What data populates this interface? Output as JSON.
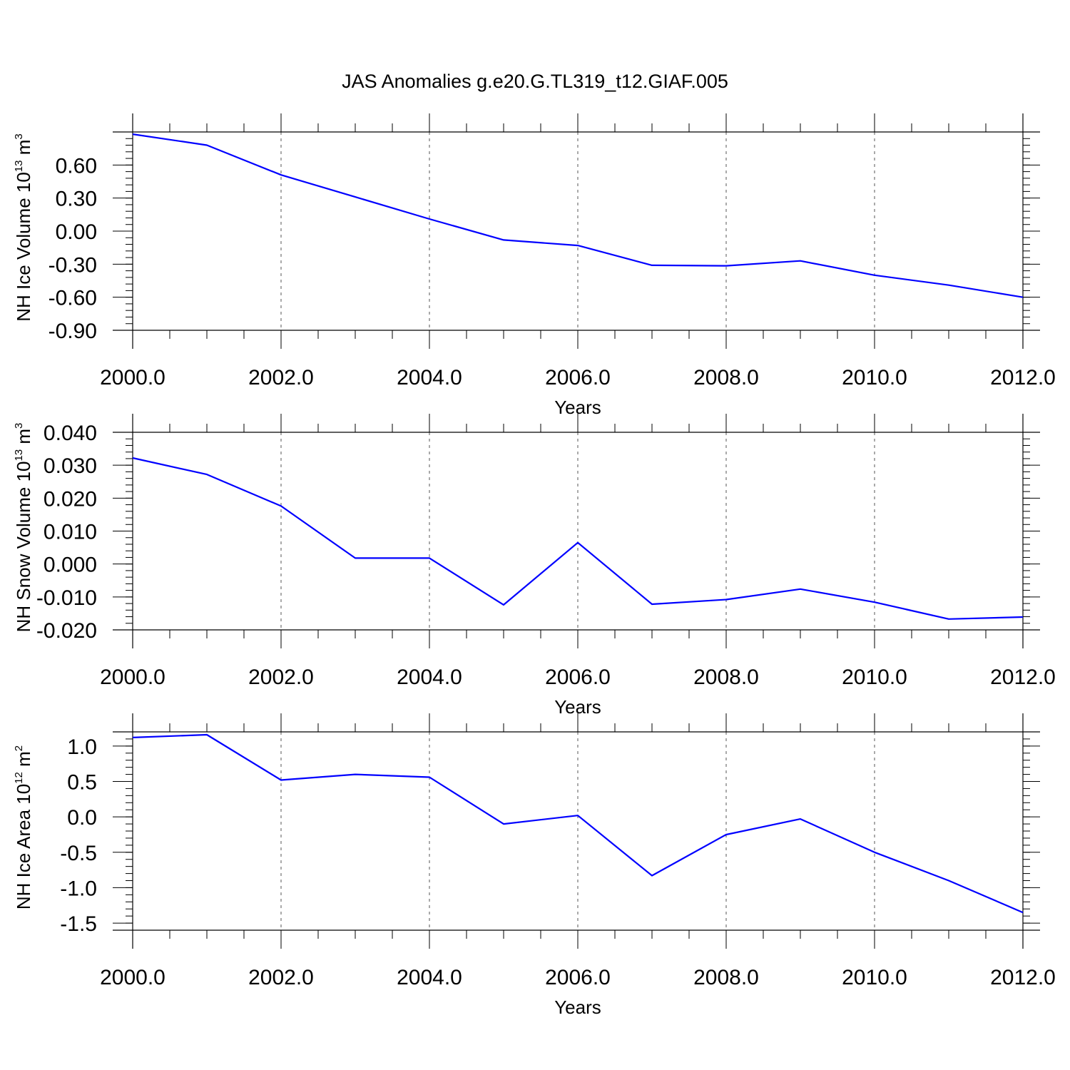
{
  "title": "JAS Anomalies g.e20.G.TL319_t12.GIAF.005",
  "line_color": "#0000ff",
  "chart_data": [
    {
      "type": "line",
      "name": "ice-volume",
      "ylabel": "NH Ice Volume 10",
      "ylabel_exp": "13",
      "ylabel_unit": " m",
      "ylabel_unit_exp": "3",
      "xlabel": "Years",
      "xlim": [
        2000,
        2012.3
      ],
      "ylim": [
        -0.9,
        0.9
      ],
      "yticks": [
        -0.9,
        -0.6,
        -0.3,
        0.0,
        0.3,
        0.6
      ],
      "ytick_labels": [
        "-0.90",
        "-0.60",
        "-0.30",
        "0.00",
        "0.30",
        "0.60"
      ],
      "xticks": [
        2000,
        2002,
        2004,
        2006,
        2008,
        2010,
        2012
      ],
      "xtick_labels": [
        "2000.0",
        "2002.0",
        "2004.0",
        "2006.0",
        "2008.0",
        "2010.0",
        "2012.0"
      ],
      "x": [
        2000,
        2001,
        2002,
        2003,
        2004,
        2005,
        2006,
        2007,
        2008,
        2009,
        2010,
        2011,
        2012
      ],
      "y": [
        0.88,
        0.78,
        0.51,
        0.31,
        0.11,
        -0.08,
        -0.13,
        -0.31,
        -0.315,
        -0.27,
        -0.4,
        -0.49,
        -0.6
      ]
    },
    {
      "type": "line",
      "name": "snow-volume",
      "ylabel": "NH Snow Volume 10",
      "ylabel_exp": "13",
      "ylabel_unit": " m",
      "ylabel_unit_exp": "3",
      "xlabel": "Years",
      "xlim": [
        2000,
        2012.3
      ],
      "ylim": [
        -0.02,
        0.04
      ],
      "yticks": [
        -0.02,
        -0.01,
        0.0,
        0.01,
        0.02,
        0.03,
        0.04
      ],
      "ytick_labels": [
        "-0.020",
        "-0.010",
        "0.000",
        "0.010",
        "0.020",
        "0.030",
        "0.040"
      ],
      "xticks": [
        2000,
        2002,
        2004,
        2006,
        2008,
        2010,
        2012
      ],
      "xtick_labels": [
        "2000.0",
        "2002.0",
        "2004.0",
        "2006.0",
        "2008.0",
        "2010.0",
        "2012.0"
      ],
      "x": [
        2000,
        2001,
        2002,
        2003,
        2004,
        2005,
        2006,
        2007,
        2008,
        2009,
        2010,
        2011,
        2012
      ],
      "y": [
        0.0322,
        0.0272,
        0.0176,
        0.0018,
        0.0018,
        -0.0124,
        0.0065,
        -0.0122,
        -0.0108,
        -0.0076,
        -0.0116,
        -0.0167,
        -0.0161
      ]
    },
    {
      "type": "line",
      "name": "ice-area",
      "ylabel": "NH Ice Area 10",
      "ylabel_exp": "12",
      "ylabel_unit": " m",
      "ylabel_unit_exp": "2",
      "xlabel": "Years",
      "xlim": [
        2000,
        2012.3
      ],
      "ylim": [
        -1.6,
        1.2
      ],
      "yticks": [
        -1.5,
        -1.0,
        -0.5,
        0.0,
        0.5,
        1.0
      ],
      "ytick_labels": [
        "-1.5",
        "-1.0",
        "-0.5",
        "0.0",
        "0.5",
        "1.0"
      ],
      "xticks": [
        2000,
        2002,
        2004,
        2006,
        2008,
        2010,
        2012
      ],
      "xtick_labels": [
        "2000.0",
        "2002.0",
        "2004.0",
        "2006.0",
        "2008.0",
        "2010.0",
        "2012.0"
      ],
      "x": [
        2000,
        2001,
        2002,
        2003,
        2004,
        2005,
        2006,
        2007,
        2008,
        2009,
        2010,
        2011,
        2012
      ],
      "y": [
        1.12,
        1.16,
        0.52,
        0.6,
        0.56,
        -0.1,
        0.02,
        -0.83,
        -0.25,
        -0.03,
        -0.5,
        -0.9,
        -1.35
      ]
    }
  ]
}
